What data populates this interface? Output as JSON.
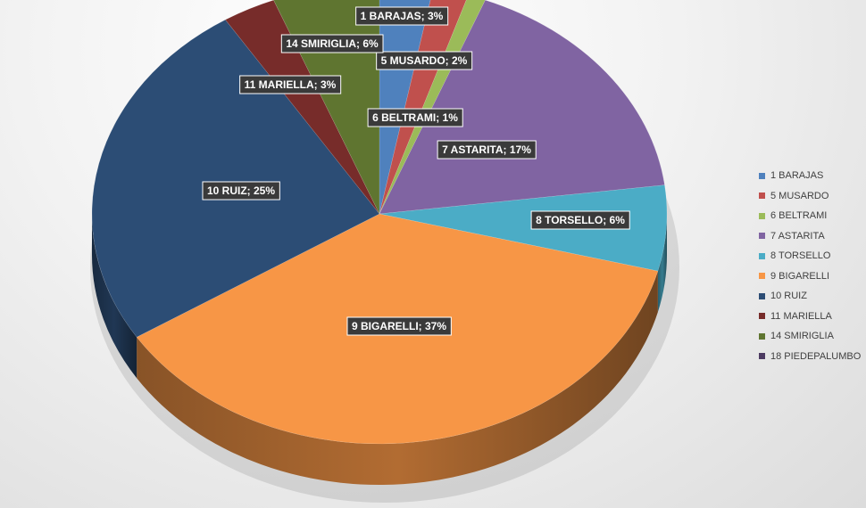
{
  "chart_data": {
    "type": "pie",
    "title": "",
    "legend_position": "right",
    "slices": [
      {
        "label": "1 BARAJAS",
        "value": 3,
        "color": "#4f81bd"
      },
      {
        "label": "5 MUSARDO",
        "value": 2,
        "color": "#c0504d"
      },
      {
        "label": "6 BELTRAMI",
        "value": 1,
        "color": "#9bbb59"
      },
      {
        "label": "7 ASTARITA",
        "value": 17,
        "color": "#8064a2"
      },
      {
        "label": "8 TORSELLO",
        "value": 6,
        "color": "#4bacc6"
      },
      {
        "label": "9 BIGARELLI",
        "value": 37,
        "color": "#f79646"
      },
      {
        "label": "10 RUIZ",
        "value": 25,
        "color": "#2c4d75"
      },
      {
        "label": "11 MARIELLA",
        "value": 3,
        "color": "#772c2a"
      },
      {
        "label": "14 SMIRIGLIA",
        "value": 6,
        "color": "#5f7530"
      },
      {
        "label": "18 PIEDEPALUMBO",
        "value": 0,
        "color": "#4d3b62"
      }
    ],
    "data_labels": [
      "1 BARAJAS; 3%",
      "5 MUSARDO; 2%",
      "6 BELTRAMI; 1%",
      "7 ASTARITA; 17%",
      "8 TORSELLO; 6%",
      "9 BIGARELLI; 37%",
      "10 RUIZ; 25%",
      "11 MARIELLA; 3%",
      "14 SMIRIGLIA; 6%"
    ]
  }
}
